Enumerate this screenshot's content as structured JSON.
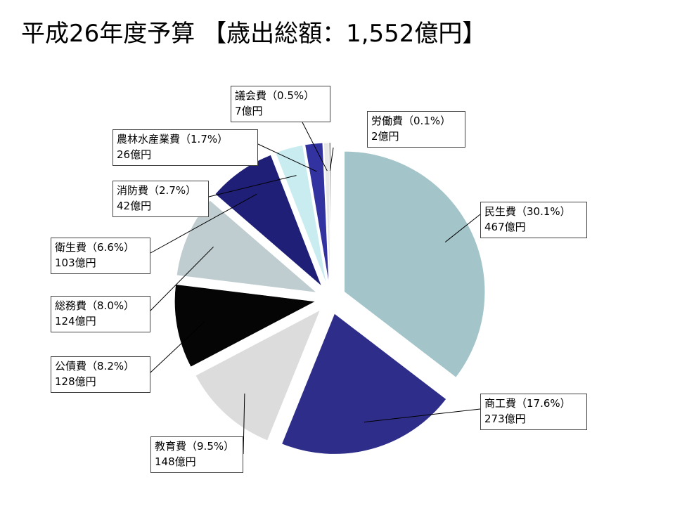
{
  "title": "平成26年度予算 【歳出総額：1,552億円】",
  "chart_data": {
    "type": "pie",
    "title": "平成26年度予算 【歳出総額：1,552億円】",
    "total_label": "1,552億円",
    "unit": "億円",
    "start_angle_deg": 0,
    "direction": "clockwise",
    "exploded": true,
    "slices": [
      {
        "name": "民生費",
        "percent": 30.1,
        "value": 467,
        "pct_label": "（30.1%）",
        "value_label": "467億円",
        "color": "#a3c4c9"
      },
      {
        "name": "商工費",
        "percent": 17.6,
        "value": 273,
        "pct_label": "（17.6%）",
        "value_label": "273億円",
        "color": "#2e2e8a"
      },
      {
        "name": "教育費",
        "percent": 9.5,
        "value": 148,
        "pct_label": "（9.5%）",
        "value_label": "148億円",
        "color": "#dcdcdc"
      },
      {
        "name": "公債費",
        "percent": 8.2,
        "value": 128,
        "pct_label": "（8.2%）",
        "value_label": "128億円",
        "color": "#050505"
      },
      {
        "name": "総務費",
        "percent": 8.0,
        "value": 124,
        "pct_label": "（8.0%）",
        "value_label": "124億円",
        "color": "#bfcdd1"
      },
      {
        "name": "衛生費",
        "percent": 6.6,
        "value": 103,
        "pct_label": "（6.6%）",
        "value_label": "103億円",
        "color": "#1f1f78"
      },
      {
        "name": "消防費",
        "percent": 2.7,
        "value": 42,
        "pct_label": "（2.7%）",
        "value_label": "42億円",
        "color": "#c8ecf0"
      },
      {
        "name": "農林水産業費",
        "percent": 1.7,
        "value": 26,
        "pct_label": "（1.7%）",
        "value_label": "26億円",
        "color": "#3232a0"
      },
      {
        "name": "議会費",
        "percent": 0.5,
        "value": 7,
        "pct_label": "（0.5%）",
        "value_label": "7億円",
        "color": "#e8e8e8"
      },
      {
        "name": "労働費",
        "percent": 0.1,
        "value": 2,
        "pct_label": "（0.1%）",
        "value_label": "2億円",
        "color": "#1a1a1a"
      }
    ]
  }
}
